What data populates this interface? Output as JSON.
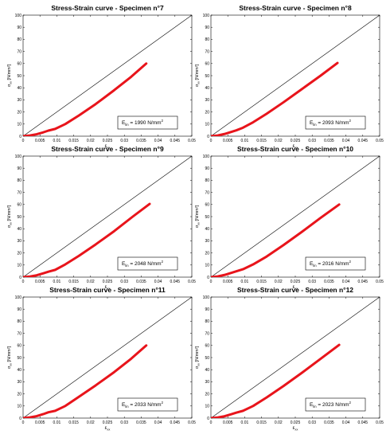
{
  "chart_data": [
    {
      "type": "line",
      "title": "Stress-Strain curve - Specimen n°7",
      "xlabel": "ε",
      "xlabel_sub": "xx",
      "ylabel": "σ",
      "ylabel_sub": "xx",
      "ylabel_unit": "[N/mm²]",
      "xlim": [
        0,
        0.05
      ],
      "ylim": [
        0,
        100
      ],
      "xticks": [
        "0",
        "0.005",
        "0.01",
        "0.015",
        "0.02",
        "0.025",
        "0.03",
        "0.035",
        "0.04",
        "0.045",
        "0.05"
      ],
      "yticks": [
        "0",
        "10",
        "20",
        "30",
        "40",
        "50",
        "60",
        "70",
        "80",
        "90",
        "100"
      ],
      "series": [
        {
          "color": "#e8141b",
          "points": [
            [
              0,
              0
            ],
            [
              0.002,
              0.6
            ],
            [
              0.004,
              1.6
            ],
            [
              0.006,
              3.2
            ],
            [
              0.0075,
              4.6
            ],
            [
              0.0095,
              6.0
            ],
            [
              0.0125,
              10.0
            ],
            [
              0.0165,
              17.0
            ],
            [
              0.0215,
              26.5
            ],
            [
              0.027,
              38.0
            ],
            [
              0.032,
              49.0
            ],
            [
              0.0365,
              60.0
            ]
          ]
        },
        {
          "color": "#000000",
          "points": [
            [
              0,
              0
            ],
            [
              0.05,
              100
            ]
          ]
        }
      ],
      "annotation": {
        "prefix": "E",
        "sub": "lin",
        "value": " = 1990 N/mm",
        "sup": "2"
      }
    },
    {
      "type": "line",
      "title": "Stress-Strain curve - Specimen n°8",
      "xlabel": "ε",
      "xlabel_sub": "xx",
      "ylabel": "σ",
      "ylabel_sub": "xx",
      "ylabel_unit": "[N/mm²]",
      "xlim": [
        0,
        0.05
      ],
      "ylim": [
        0,
        100
      ],
      "xticks": [
        "0",
        "0.005",
        "0.01",
        "0.015",
        "0.02",
        "0.025",
        "0.03",
        "0.035",
        "0.04",
        "0.045",
        "0.05"
      ],
      "yticks": [
        "0",
        "10",
        "20",
        "30",
        "40",
        "50",
        "60",
        "70",
        "80",
        "90",
        "100"
      ],
      "series": [
        {
          "color": "#e8141b",
          "points": [
            [
              0,
              0
            ],
            [
              0.002,
              0.6
            ],
            [
              0.004,
              1.8
            ],
            [
              0.006,
              3.5
            ],
            [
              0.0075,
              4.8
            ],
            [
              0.0095,
              7.0
            ],
            [
              0.0125,
              11.5
            ],
            [
              0.0165,
              18.5
            ],
            [
              0.0215,
              28.0
            ],
            [
              0.027,
              39.0
            ],
            [
              0.0325,
              50.0
            ],
            [
              0.0375,
              60.5
            ]
          ]
        },
        {
          "color": "#000000",
          "points": [
            [
              0,
              0
            ],
            [
              0.05,
              100
            ]
          ]
        }
      ],
      "annotation": {
        "prefix": "E",
        "sub": "lin",
        "value": " = 2093 N/mm",
        "sup": "2"
      }
    },
    {
      "type": "line",
      "title": "Stress-Strain curve - Specimen n°9",
      "xlabel": "ε",
      "xlabel_sub": "xx",
      "ylabel": "σ",
      "ylabel_sub": "xx",
      "ylabel_unit": "[N/mm²]",
      "xlim": [
        0,
        0.05
      ],
      "ylim": [
        0,
        100
      ],
      "xticks": [
        "0",
        "0.005",
        "0.01",
        "0.015",
        "0.02",
        "0.025",
        "0.03",
        "0.035",
        "0.04",
        "0.045",
        "0.05"
      ],
      "yticks": [
        "0",
        "10",
        "20",
        "30",
        "40",
        "50",
        "60",
        "70",
        "80",
        "90",
        "100"
      ],
      "series": [
        {
          "color": "#e8141b",
          "points": [
            [
              0,
              0
            ],
            [
              0.002,
              0.5
            ],
            [
              0.004,
              1.5
            ],
            [
              0.006,
              3.2
            ],
            [
              0.0075,
              4.5
            ],
            [
              0.0095,
              6.0
            ],
            [
              0.0125,
              10.5
            ],
            [
              0.0165,
              17.5
            ],
            [
              0.0215,
              27.0
            ],
            [
              0.027,
              38.0
            ],
            [
              0.0325,
              50.0
            ],
            [
              0.0375,
              60.5
            ]
          ]
        },
        {
          "color": "#000000",
          "points": [
            [
              0,
              0
            ],
            [
              0.05,
              100
            ]
          ]
        }
      ],
      "annotation": {
        "prefix": "E",
        "sub": "lin",
        "value": " = 2048 N/mm",
        "sup": "2"
      }
    },
    {
      "type": "line",
      "title": "Stress-Strain curve - Specimen n°10",
      "xlabel": "ε",
      "xlabel_sub": "xx",
      "ylabel": "σ",
      "ylabel_sub": "xx",
      "ylabel_unit": "[N/mm²]",
      "xlim": [
        0,
        0.05
      ],
      "ylim": [
        0,
        100
      ],
      "xticks": [
        "0",
        "0.005",
        "0.01",
        "0.015",
        "0.02",
        "0.025",
        "0.03",
        "0.035",
        "0.04",
        "0.045",
        "0.05"
      ],
      "yticks": [
        "0",
        "10",
        "20",
        "30",
        "40",
        "50",
        "60",
        "70",
        "80",
        "90",
        "100"
      ],
      "series": [
        {
          "color": "#e8141b",
          "points": [
            [
              0,
              0
            ],
            [
              0.002,
              0.6
            ],
            [
              0.004,
              1.8
            ],
            [
              0.006,
              3.5
            ],
            [
              0.0075,
              4.8
            ],
            [
              0.0095,
              6.5
            ],
            [
              0.0125,
              10.5
            ],
            [
              0.0165,
              17.0
            ],
            [
              0.0215,
              26.5
            ],
            [
              0.027,
              37.5
            ],
            [
              0.0325,
              49.0
            ],
            [
              0.038,
              60.0
            ]
          ]
        },
        {
          "color": "#000000",
          "points": [
            [
              0,
              0
            ],
            [
              0.05,
              100
            ]
          ]
        }
      ],
      "annotation": {
        "prefix": "E",
        "sub": "lin",
        "value": " = 2016 N/mm",
        "sup": "2"
      }
    },
    {
      "type": "line",
      "title": "Stress-Strain curve - Specimen n°11",
      "xlabel": "ε",
      "xlabel_sub": "xx",
      "ylabel": "σ",
      "ylabel_sub": "xx",
      "ylabel_unit": "[N/mm²]",
      "xlim": [
        0,
        0.05
      ],
      "ylim": [
        0,
        100
      ],
      "xticks": [
        "0",
        "0.005",
        "0.01",
        "0.015",
        "0.02",
        "0.025",
        "0.03",
        "0.035",
        "0.04",
        "0.045",
        "0.05"
      ],
      "yticks": [
        "0",
        "10",
        "20",
        "30",
        "40",
        "50",
        "60",
        "70",
        "80",
        "90",
        "100"
      ],
      "series": [
        {
          "color": "#e8141b",
          "points": [
            [
              0,
              0
            ],
            [
              0.002,
              0.6
            ],
            [
              0.004,
              1.6
            ],
            [
              0.006,
              3.3
            ],
            [
              0.0075,
              4.8
            ],
            [
              0.0095,
              6.0
            ],
            [
              0.0125,
              10.0
            ],
            [
              0.0165,
              17.5
            ],
            [
              0.0215,
              27.0
            ],
            [
              0.027,
              38.0
            ],
            [
              0.032,
              49.0
            ],
            [
              0.0365,
              60.0
            ]
          ]
        },
        {
          "color": "#000000",
          "points": [
            [
              0,
              0
            ],
            [
              0.05,
              100
            ]
          ]
        }
      ],
      "annotation": {
        "prefix": "E",
        "sub": "lin",
        "value": " = 2033 N/mm",
        "sup": "2"
      }
    },
    {
      "type": "line",
      "title": "Stress-Strain curve - Specimen n°12",
      "xlabel": "ε",
      "xlabel_sub": "xx",
      "ylabel": "σ",
      "ylabel_sub": "xx",
      "ylabel_unit": "[N/mm²]",
      "xlim": [
        0,
        0.05
      ],
      "ylim": [
        0,
        100
      ],
      "xticks": [
        "0",
        "0.005",
        "0.01",
        "0.015",
        "0.02",
        "0.025",
        "0.03",
        "0.035",
        "0.04",
        "0.045",
        "0.05"
      ],
      "yticks": [
        "0",
        "10",
        "20",
        "30",
        "40",
        "50",
        "60",
        "70",
        "80",
        "90",
        "100"
      ],
      "series": [
        {
          "color": "#e8141b",
          "points": [
            [
              0,
              0
            ],
            [
              0.002,
              0.5
            ],
            [
              0.004,
              1.5
            ],
            [
              0.006,
              3.2
            ],
            [
              0.0075,
              4.5
            ],
            [
              0.0095,
              6.0
            ],
            [
              0.0125,
              10.0
            ],
            [
              0.0165,
              17.0
            ],
            [
              0.0215,
              26.5
            ],
            [
              0.027,
              37.5
            ],
            [
              0.0325,
              49.0
            ],
            [
              0.038,
              60.5
            ]
          ]
        },
        {
          "color": "#000000",
          "points": [
            [
              0,
              0
            ],
            [
              0.05,
              100
            ]
          ]
        }
      ],
      "annotation": {
        "prefix": "E",
        "sub": "lin",
        "value": " = 2023 N/mm",
        "sup": "2"
      }
    }
  ]
}
